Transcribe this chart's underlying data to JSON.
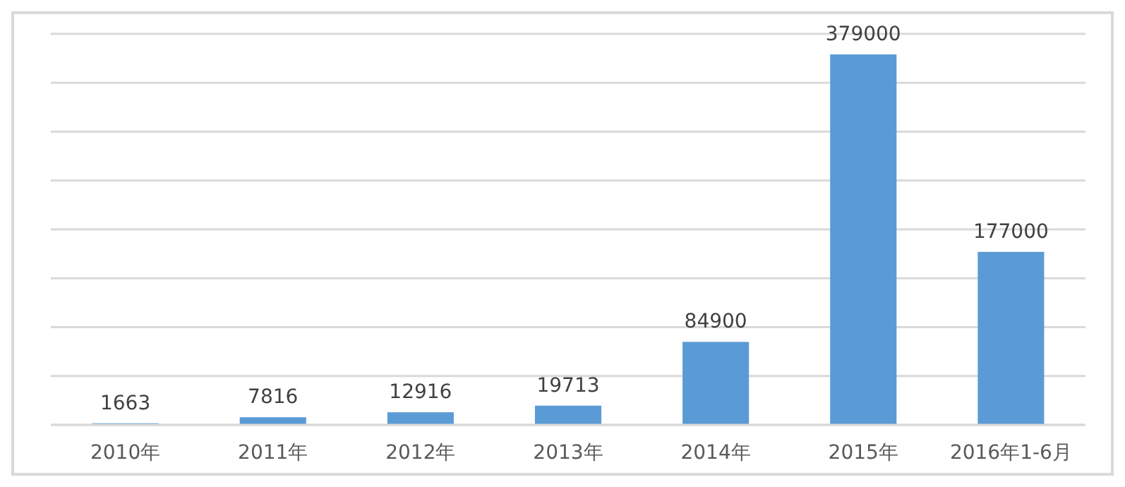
{
  "chart_data": {
    "type": "bar",
    "categories": [
      "2010年",
      "2011年",
      "2012年",
      "2013年",
      "2014年",
      "2015年",
      "2016年1-6月"
    ],
    "values": [
      1663,
      7816,
      12916,
      19713,
      84900,
      379000,
      177000
    ],
    "color": "#5b9bd5",
    "ylim": [
      0,
      400000
    ],
    "yticks": [
      {
        "value": 0,
        "label": null
      },
      {
        "value": 50000,
        "label": null
      },
      {
        "value": 100000,
        "label": null
      },
      {
        "value": 150000,
        "label": null
      },
      {
        "value": 200000,
        "label": null
      },
      {
        "value": 250000,
        "label": null
      },
      {
        "value": 300000,
        "label": null
      },
      {
        "value": 350000,
        "label": null
      },
      {
        "value": 400000,
        "label": null
      }
    ],
    "grid": true,
    "data_labels": true,
    "tick_labels": "x"
  }
}
